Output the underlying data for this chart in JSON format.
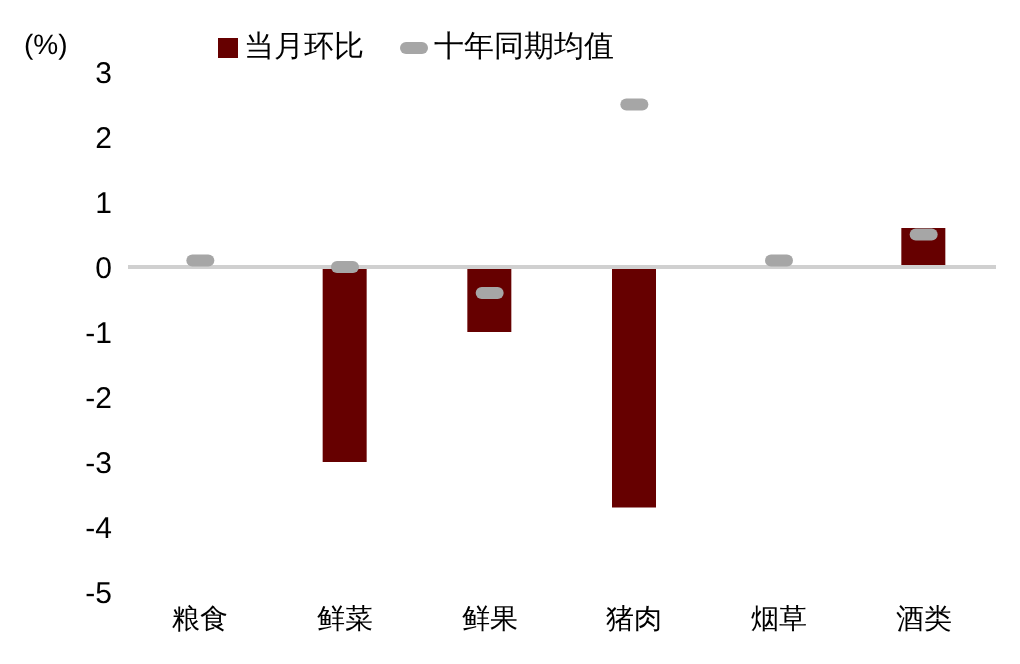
{
  "chart_data": {
    "type": "bar",
    "ylabel": "(%)",
    "categories": [
      "粮食",
      "鲜菜",
      "鲜果",
      "猪肉",
      "烟草",
      "酒类"
    ],
    "series": [
      {
        "name": "当月环比",
        "color": "#660000",
        "values": [
          0,
          -3.0,
          -1.0,
          -3.7,
          0,
          0.6
        ]
      },
      {
        "name": "十年同期均值",
        "type": "scatter",
        "color": "#a6a6a6",
        "values": [
          0.1,
          0.0,
          -0.4,
          2.5,
          0.1,
          0.5
        ]
      }
    ],
    "ylim": [
      -5,
      3
    ],
    "yticks": [
      -5,
      -4,
      -3,
      -2,
      -1,
      0,
      1,
      2,
      3
    ],
    "grid": false,
    "legend": "top",
    "ref_lines": [
      {
        "axis": "y",
        "value": 0,
        "color": "#d0d0d0"
      }
    ]
  }
}
